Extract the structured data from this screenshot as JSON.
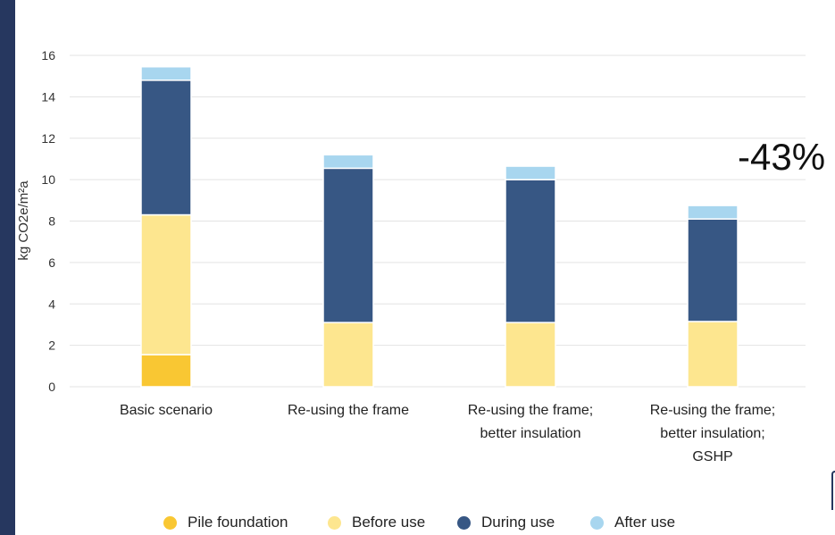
{
  "chart_data": {
    "type": "bar",
    "stacked": true,
    "categories": [
      [
        "Basic scenario"
      ],
      [
        "Re-using the frame"
      ],
      [
        "Re-using the frame;",
        "better insulation"
      ],
      [
        "Re-using the frame;",
        "better insulation;",
        "GSHP"
      ]
    ],
    "series": [
      {
        "name": "Pile foundation",
        "color": "#f9c733",
        "values": [
          1.55,
          0,
          0,
          0
        ]
      },
      {
        "name": "Before use",
        "color": "#fde68f",
        "values": [
          6.75,
          3.1,
          3.1,
          3.15
        ]
      },
      {
        "name": "During use",
        "color": "#375784",
        "values": [
          6.5,
          7.45,
          6.9,
          4.95
        ]
      },
      {
        "name": "After use",
        "color": "#a8d6ef",
        "values": [
          0.65,
          0.65,
          0.65,
          0.65
        ]
      }
    ],
    "ylabel": "kg CO2e/m²a",
    "ylim": [
      0,
      16
    ],
    "yticks": [
      0,
      2,
      4,
      6,
      8,
      10,
      12,
      14,
      16
    ],
    "grid": true,
    "legend_position": "bottom"
  },
  "annotation": {
    "text": "-43%"
  },
  "legend": {
    "items": [
      {
        "label": "Pile foundation",
        "color": "#f9c733"
      },
      {
        "label": "Before use",
        "color": "#fde68f"
      },
      {
        "label": "During use",
        "color": "#375784"
      },
      {
        "label": "After use",
        "color": "#a8d6ef"
      }
    ]
  },
  "colors": {
    "frame": "#26375f",
    "grid": "#e3e3e3",
    "axis_text": "#333333"
  }
}
